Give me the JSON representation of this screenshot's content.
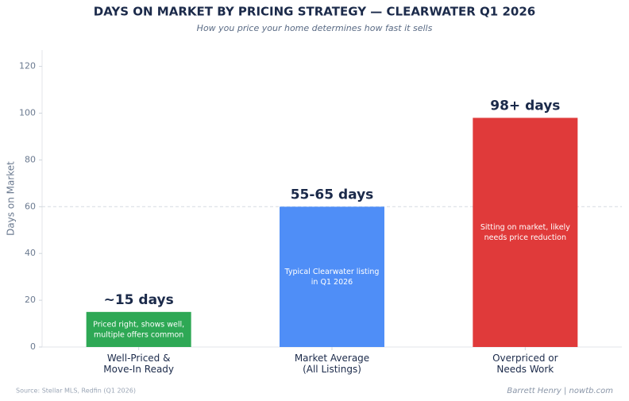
{
  "chart_data": {
    "type": "bar",
    "title": "DAYS ON MARKET BY PRICING STRATEGY — CLEARWATER Q1 2026",
    "subtitle": "How you price your home determines how fast it sells",
    "y_label": "Days on Market",
    "categories": [
      "Well-Priced &\nMove-In Ready",
      "Market Average\n(All Listings)",
      "Overpriced or\nNeeds Work"
    ],
    "values": [
      15,
      60,
      98
    ],
    "value_labels": [
      "~15 days",
      "55-65 days",
      "98+ days"
    ],
    "colors": [
      "#2ea855",
      "#4f8ef7",
      "#e03a3a"
    ],
    "bar_notes": [
      "Priced right, shows well,\nmultiple offers common",
      "Typical Clearwater listing\nin Q1 2026",
      "Sitting on market, likely\nneeds price reduction"
    ],
    "reference_line": 60,
    "ylim": [
      0,
      127
    ],
    "yticks": [
      0,
      20,
      40,
      60,
      80,
      100,
      120
    ],
    "source": "Source: Stellar MLS, Redfin (Q1 2026)",
    "credit": "Barrett Henry | nowtb.com"
  }
}
